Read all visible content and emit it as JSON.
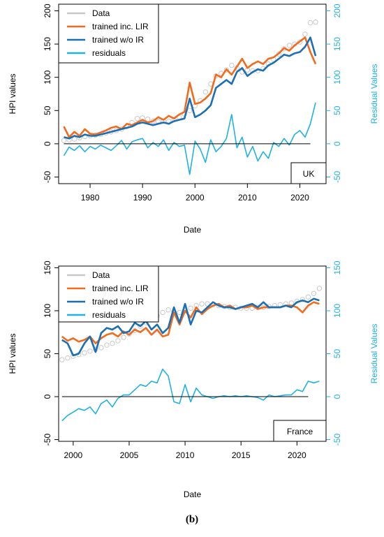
{
  "caption": "(b)",
  "colors": {
    "data": "#c8c8c8",
    "lir": "#f26b1d",
    "woir": "#1b6fb3",
    "residuals": "#1fb2e0",
    "axis": "#000000",
    "right_axis": "#1fb2e0"
  },
  "chart_data": [
    {
      "type": "line",
      "x_unit": "year",
      "xlabel": "Date",
      "ylabel": "HPI values",
      "y2label": "Residual Values",
      "xlim": [
        1974,
        2025
      ],
      "ylim": [
        -60,
        210
      ],
      "y2lim": [
        -60,
        210
      ],
      "xticks": [
        "1980",
        "1990",
        "2000",
        "2010",
        "2020"
      ],
      "yticks": [
        "-50",
        "0",
        "50",
        "100",
        "150",
        "200"
      ],
      "y2ticks": [
        "-50",
        "0",
        "50",
        "100",
        "150",
        "200"
      ],
      "baseline": 0,
      "country_label": "UK",
      "legend": {
        "position": "top-left",
        "entries": [
          "Data",
          "trained inc. LIR",
          "trained w/o IR",
          "residuals"
        ]
      },
      "series": [
        {
          "name": "Data",
          "style": "points",
          "x": [
            1975,
            1976,
            1977,
            1978,
            1979,
            1980,
            1981,
            1982,
            1983,
            1984,
            1985,
            1986,
            1987,
            1988,
            1989,
            1990,
            1991,
            1992,
            1993,
            1994,
            1995,
            1996,
            1997,
            1998,
            1999,
            2000,
            2001,
            2002,
            2003,
            2004,
            2005,
            2006,
            2007,
            2008,
            2009,
            2010,
            2011,
            2012,
            2013,
            2014,
            2015,
            2016,
            2017,
            2018,
            2019,
            2020,
            2021,
            2022,
            2023
          ],
          "values": [
            5,
            6,
            7,
            9,
            11,
            12,
            13,
            14,
            16,
            18,
            20,
            22,
            26,
            32,
            38,
            39,
            37,
            34,
            33,
            34,
            34,
            36,
            40,
            45,
            50,
            57,
            65,
            78,
            90,
            102,
            106,
            111,
            118,
            114,
            108,
            111,
            110,
            110,
            113,
            120,
            127,
            135,
            143,
            148,
            150,
            153,
            165,
            182,
            183
          ]
        },
        {
          "name": "trained inc. LIR",
          "style": "line",
          "x": [
            1975,
            1976,
            1977,
            1978,
            1979,
            1980,
            1981,
            1982,
            1983,
            1984,
            1985,
            1986,
            1987,
            1988,
            1989,
            1990,
            1991,
            1992,
            1993,
            1994,
            1995,
            1996,
            1997,
            1998,
            1999,
            2000,
            2001,
            2002,
            2003,
            2004,
            2005,
            2006,
            2007,
            2008,
            2009,
            2010,
            2011,
            2012,
            2013,
            2014,
            2015,
            2016,
            2017,
            2018,
            2019,
            2020,
            2021,
            2022,
            2023
          ],
          "values": [
            26,
            10,
            18,
            12,
            22,
            15,
            14,
            17,
            20,
            24,
            26,
            22,
            30,
            28,
            32,
            36,
            32,
            34,
            40,
            36,
            42,
            38,
            44,
            48,
            92,
            60,
            62,
            68,
            76,
            104,
            100,
            112,
            104,
            116,
            128,
            114,
            120,
            124,
            120,
            128,
            130,
            136,
            144,
            140,
            148,
            154,
            160,
            138,
            120
          ]
        },
        {
          "name": "trained w/o IR",
          "style": "line",
          "x": [
            1975,
            1976,
            1977,
            1978,
            1979,
            1980,
            1981,
            1982,
            1983,
            1984,
            1985,
            1986,
            1987,
            1988,
            1989,
            1990,
            1991,
            1992,
            1993,
            1994,
            1995,
            1996,
            1997,
            1998,
            1999,
            2000,
            2001,
            2002,
            2003,
            2004,
            2005,
            2006,
            2007,
            2008,
            2009,
            2010,
            2011,
            2012,
            2013,
            2014,
            2015,
            2016,
            2017,
            2018,
            2019,
            2020,
            2021,
            2022,
            2023
          ],
          "values": [
            10,
            8,
            12,
            10,
            14,
            12,
            12,
            14,
            16,
            18,
            20,
            22,
            24,
            26,
            30,
            32,
            30,
            28,
            30,
            32,
            30,
            34,
            36,
            38,
            68,
            40,
            44,
            50,
            58,
            84,
            90,
            96,
            90,
            108,
            114,
            102,
            108,
            112,
            110,
            118,
            122,
            128,
            134,
            132,
            136,
            138,
            146,
            160,
            132
          ]
        },
        {
          "name": "residuals",
          "style": "line",
          "axis": "right",
          "x": [
            1975,
            1976,
            1977,
            1978,
            1979,
            1980,
            1981,
            1982,
            1983,
            1984,
            1985,
            1986,
            1987,
            1988,
            1989,
            1990,
            1991,
            1992,
            1993,
            1994,
            1995,
            1996,
            1997,
            1998,
            1999,
            2000,
            2001,
            2002,
            2003,
            2004,
            2005,
            2006,
            2007,
            2008,
            2009,
            2010,
            2011,
            2012,
            2013,
            2014,
            2015,
            2016,
            2017,
            2018,
            2019,
            2020,
            2021,
            2022,
            2023
          ],
          "values": [
            -18,
            -5,
            -10,
            -3,
            -12,
            -4,
            -8,
            -2,
            -6,
            -10,
            -3,
            5,
            -8,
            3,
            6,
            8,
            -6,
            2,
            -4,
            6,
            -10,
            2,
            -4,
            -2,
            -46,
            4,
            -8,
            -28,
            6,
            -12,
            -4,
            8,
            44,
            -6,
            10,
            -20,
            -4,
            -26,
            -12,
            -22,
            2,
            -4,
            8,
            -2,
            14,
            20,
            10,
            30,
            62
          ]
        }
      ]
    },
    {
      "type": "line",
      "x_unit": "year",
      "xlabel": "Date",
      "ylabel": "HPI values",
      "y2label": "Residual Values",
      "xlim": [
        1998.7,
        2022.6
      ],
      "ylim": [
        -52,
        152
      ],
      "y2lim": [
        -52,
        152
      ],
      "xticks": [
        "2000",
        "2005",
        "2010",
        "2015",
        "2020"
      ],
      "yticks": [
        "-50",
        "0",
        "50",
        "100",
        "150"
      ],
      "y2ticks": [
        "-50",
        "0",
        "50",
        "100",
        "150"
      ],
      "baseline": 0,
      "country_label": "France",
      "legend": {
        "position": "top-left",
        "entries": [
          "Data",
          "trained inc. LIR",
          "trained w/o IR",
          "residuals"
        ]
      },
      "series": [
        {
          "name": "Data",
          "style": "points",
          "x": [
            1999,
            1999.5,
            2000,
            2000.5,
            2001,
            2001.5,
            2002,
            2002.5,
            2003,
            2003.5,
            2004,
            2004.5,
            2005,
            2005.5,
            2006,
            2006.5,
            2007,
            2007.5,
            2008,
            2008.5,
            2009,
            2009.5,
            2010,
            2010.5,
            2011,
            2011.5,
            2012,
            2012.5,
            2013,
            2013.5,
            2014,
            2014.5,
            2015,
            2015.5,
            2016,
            2016.5,
            2017,
            2017.5,
            2018,
            2018.5,
            2019,
            2019.5,
            2020,
            2020.5,
            2021,
            2021.5,
            2022
          ],
          "values": [
            43,
            45,
            47,
            49,
            51,
            53,
            55,
            57,
            60,
            62,
            65,
            69,
            73,
            77,
            82,
            86,
            90,
            94,
            98,
            101,
            99,
            98,
            100,
            103,
            106,
            108,
            108,
            107,
            106,
            105,
            104,
            104,
            103,
            103,
            103,
            104,
            104,
            105,
            106,
            107,
            108,
            109,
            111,
            113,
            116,
            120,
            126
          ]
        },
        {
          "name": "trained inc. LIR",
          "style": "line",
          "x": [
            1999,
            1999.5,
            2000,
            2000.5,
            2001,
            2001.5,
            2002,
            2002.5,
            2003,
            2003.5,
            2004,
            2004.5,
            2005,
            2005.5,
            2006,
            2006.5,
            2007,
            2007.5,
            2008,
            2008.5,
            2009,
            2009.5,
            2010,
            2010.5,
            2011,
            2011.5,
            2012,
            2012.5,
            2013,
            2013.5,
            2014,
            2014.5,
            2015,
            2015.5,
            2016,
            2016.5,
            2017,
            2017.5,
            2018,
            2018.5,
            2019,
            2019.5,
            2020,
            2020.5,
            2021,
            2021.5,
            2022
          ],
          "values": [
            70,
            65,
            68,
            64,
            66,
            70,
            62,
            68,
            72,
            74,
            70,
            76,
            72,
            78,
            75,
            80,
            72,
            78,
            70,
            72,
            98,
            84,
            100,
            92,
            104,
            96,
            102,
            106,
            108,
            104,
            106,
            102,
            104,
            104,
            106,
            102,
            104,
            104,
            104,
            104,
            106,
            106,
            104,
            98,
            106,
            110,
            108
          ]
        },
        {
          "name": "trained w/o IR",
          "style": "line",
          "x": [
            1999,
            1999.5,
            2000,
            2000.5,
            2001,
            2001.5,
            2002,
            2002.5,
            2003,
            2003.5,
            2004,
            2004.5,
            2005,
            2005.5,
            2006,
            2006.5,
            2007,
            2007.5,
            2008,
            2008.5,
            2009,
            2009.5,
            2010,
            2010.5,
            2011,
            2011.5,
            2012,
            2012.5,
            2013,
            2013.5,
            2014,
            2014.5,
            2015,
            2015.5,
            2016,
            2016.5,
            2017,
            2017.5,
            2018,
            2018.5,
            2019,
            2019.5,
            2020,
            2020.5,
            2021,
            2021.5,
            2022
          ],
          "values": [
            66,
            62,
            48,
            50,
            62,
            70,
            52,
            74,
            80,
            78,
            82,
            74,
            76,
            86,
            82,
            88,
            78,
            84,
            74,
            80,
            104,
            86,
            108,
            84,
            100,
            98,
            104,
            110,
            106,
            104,
            104,
            102,
            104,
            106,
            108,
            104,
            110,
            104,
            104,
            104,
            106,
            104,
            110,
            112,
            110,
            114,
            112
          ]
        },
        {
          "name": "residuals",
          "style": "line",
          "axis": "right",
          "x": [
            1999,
            1999.5,
            2000,
            2000.5,
            2001,
            2001.5,
            2002,
            2002.5,
            2003,
            2003.5,
            2004,
            2004.5,
            2005,
            2005.5,
            2006,
            2006.5,
            2007,
            2007.5,
            2008,
            2008.5,
            2009,
            2009.5,
            2010,
            2010.5,
            2011,
            2011.5,
            2012,
            2012.5,
            2013,
            2013.5,
            2014,
            2014.5,
            2015,
            2015.5,
            2016,
            2016.5,
            2017,
            2017.5,
            2018,
            2018.5,
            2019,
            2019.5,
            2020,
            2020.5,
            2021,
            2021.5,
            2022
          ],
          "values": [
            -28,
            -22,
            -18,
            -14,
            -16,
            -12,
            -20,
            -8,
            -4,
            -12,
            -2,
            2,
            2,
            8,
            14,
            12,
            18,
            16,
            32,
            24,
            -6,
            -8,
            14,
            -6,
            10,
            2,
            0,
            -2,
            0,
            1,
            0,
            1,
            0,
            1,
            0,
            -1,
            -4,
            2,
            0,
            1,
            2,
            2,
            8,
            6,
            18,
            16,
            18
          ]
        }
      ]
    }
  ]
}
